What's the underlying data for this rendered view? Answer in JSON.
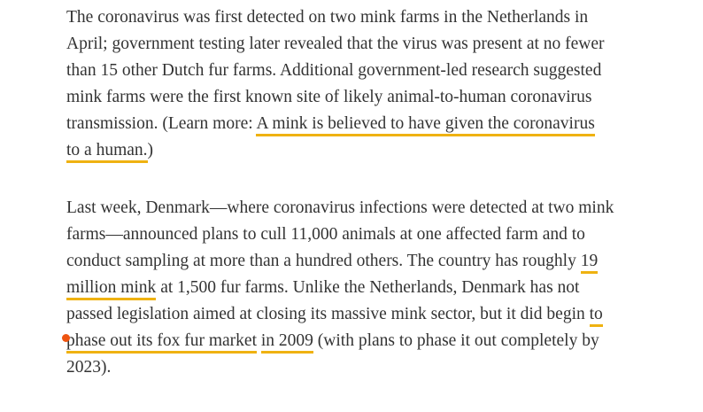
{
  "page": {
    "background": "#ffffff",
    "text_color": "#333333",
    "link_underline_color": "#efb211",
    "marker_color": "#ee5410"
  },
  "article": {
    "links": [
      {
        "id": "link-mink-to-human",
        "text": "A mink is believed to have given the coronavirus to a human."
      },
      {
        "id": "link-19-million-mink",
        "text": "19 million mink"
      },
      {
        "id": "link-phase-out-fox-fur",
        "text": "to phase out its fox fur market"
      },
      {
        "id": "link-in-2009",
        "text": "in 2009"
      }
    ],
    "paragraphs": [
      {
        "lines": [
          {
            "segments": [
              {
                "t": "The coronavirus was first detected on two mink farms in the Netherlands in"
              }
            ]
          },
          {
            "segments": [
              {
                "t": "April; government testing later revealed that the virus was present at no fewer"
              }
            ]
          },
          {
            "segments": [
              {
                "t": "than 15 other Dutch fur farms. Additional government-led research suggested"
              }
            ]
          },
          {
            "segments": [
              {
                "t": "mink farms were the first known site of likely animal-to-human coronavirus"
              }
            ]
          },
          {
            "segments": [
              {
                "t": "transmission. (Learn more: "
              },
              {
                "t": "A mink is believed to have given the coronavirus",
                "link": true,
                "link_id": "link-mink-to-human"
              }
            ]
          },
          {
            "segments": [
              {
                "t": "to a human.",
                "link": true,
                "link_id": "link-mink-to-human"
              },
              {
                "t": ")"
              }
            ]
          }
        ]
      },
      {
        "lines": [
          {
            "segments": [
              {
                "t": "Last week, Denmark—where coronavirus infections were detected at two mink"
              }
            ]
          },
          {
            "segments": [
              {
                "t": "farms—announced plans to cull 11,000 animals at one affected farm and to"
              }
            ]
          },
          {
            "segments": [
              {
                "t": "conduct sampling at more than a hundred others. The country has roughly "
              },
              {
                "t": "19",
                "link": true,
                "link_id": "link-19-million-mink"
              }
            ]
          },
          {
            "segments": [
              {
                "t": "million mink",
                "link": true,
                "link_id": "link-19-million-mink"
              },
              {
                "t": " at 1,500 fur farms. Unlike the Netherlands, Denmark has not"
              }
            ]
          },
          {
            "segments": [
              {
                "t": "passed legislation aimed at closing its massive mink sector, but it did begin "
              },
              {
                "t": "to",
                "link": true,
                "link_id": "link-phase-out-fox-fur"
              }
            ]
          },
          {
            "segments": [
              {
                "t": "phase out its fox fur market",
                "link": true,
                "link_id": "link-phase-out-fox-fur"
              },
              {
                "t": " "
              },
              {
                "t": "in 2009",
                "link": true,
                "link_id": "link-in-2009"
              },
              {
                "t": " (with plans to phase it out completely by"
              }
            ]
          },
          {
            "segments": [
              {
                "t": "2023)."
              }
            ]
          }
        ]
      }
    ]
  },
  "marker": {
    "name": "orange-dot-marker"
  }
}
